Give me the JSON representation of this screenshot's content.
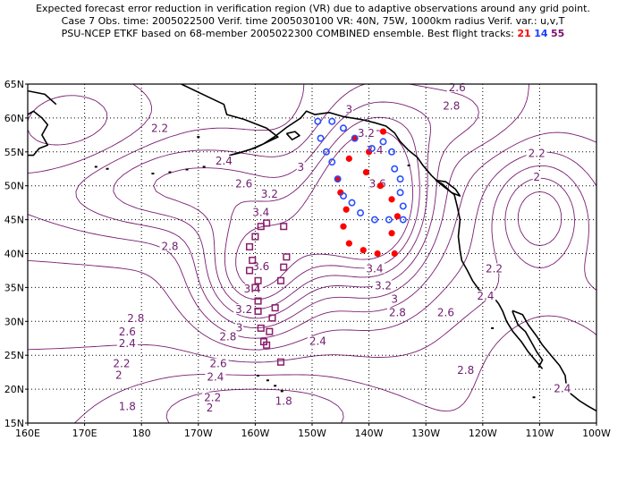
{
  "header": {
    "line1": "Expected forecast error reduction in verification region (VR) due to adaptive observations around any grid point.",
    "line2": "Case 7   Obs. time: 2005022500   Verif. time 2005030100   VR: 40N, 75W, 1000km radius   Verif. var.: u,v,T",
    "line3_prefix": "PSU-NCEP ETKF based on 68-member 2005022300 COMBINED ensemble.   Best flight tracks:",
    "track_red": "21",
    "track_blue": "14",
    "track_purple": "55"
  },
  "colors": {
    "contour": "#7a1e72",
    "red_track": "#ff0000",
    "blue_track": "#2a4fff",
    "purple_track": "#8a1e6a",
    "coast": "#000000",
    "grid": "#000000"
  },
  "axes": {
    "lat_labels": [
      "65N",
      "60N",
      "55N",
      "50N",
      "45N",
      "40N",
      "35N",
      "30N",
      "25N",
      "20N",
      "15N"
    ],
    "lon_labels": [
      "160E",
      "170E",
      "180",
      "170W",
      "160W",
      "150W",
      "140W",
      "130W",
      "120W",
      "110W",
      "100W"
    ]
  },
  "contour_labels": [
    {
      "text": "2.2",
      "lon": -176.8,
      "lat": 58.2
    },
    {
      "text": "2.4",
      "lon": -165.5,
      "lat": 53.4
    },
    {
      "text": "2.6",
      "lon": -162.0,
      "lat": 50.0
    },
    {
      "text": "2.8",
      "lon": -175.0,
      "lat": 40.8
    },
    {
      "text": "3",
      "lon": -152.0,
      "lat": 52.5
    },
    {
      "text": "3.2",
      "lon": -157.5,
      "lat": 48.5
    },
    {
      "text": "3.4",
      "lon": -159.0,
      "lat": 45.8
    },
    {
      "text": "3.6",
      "lon": -159.0,
      "lat": 37.8
    },
    {
      "text": "3.4",
      "lon": -160.5,
      "lat": 34.5
    },
    {
      "text": "3.2",
      "lon": -162.0,
      "lat": 31.5
    },
    {
      "text": "3",
      "lon": -162.8,
      "lat": 28.8
    },
    {
      "text": "2.8",
      "lon": -164.8,
      "lat": 27.5
    },
    {
      "text": "2.6",
      "lon": -166.5,
      "lat": 23.5
    },
    {
      "text": "2.4",
      "lon": -167.0,
      "lat": 21.5
    },
    {
      "text": "2.2",
      "lon": -167.5,
      "lat": 18.5
    },
    {
      "text": "2",
      "lon": -168.0,
      "lat": 17.0
    },
    {
      "text": "1.8",
      "lon": -155.0,
      "lat": 18.0
    },
    {
      "text": "2.8",
      "lon": -181.0,
      "lat": 30.2
    },
    {
      "text": "2.6",
      "lon": -182.5,
      "lat": 28.2
    },
    {
      "text": "2.4",
      "lon": -182.5,
      "lat": 26.5
    },
    {
      "text": "2.2",
      "lon": -183.5,
      "lat": 23.5
    },
    {
      "text": "2",
      "lon": -184.0,
      "lat": 21.8
    },
    {
      "text": "1.8",
      "lon": -182.5,
      "lat": 17.2
    },
    {
      "text": "2.4",
      "lon": -149.0,
      "lat": 26.8
    },
    {
      "text": "3.2",
      "lon": -140.5,
      "lat": 57.5
    },
    {
      "text": "3.4",
      "lon": -139.0,
      "lat": 55.0
    },
    {
      "text": "3.6",
      "lon": -138.5,
      "lat": 50.0
    },
    {
      "text": "3",
      "lon": -143.5,
      "lat": 61.0
    },
    {
      "text": "3.4",
      "lon": -139.0,
      "lat": 37.5
    },
    {
      "text": "3.2",
      "lon": -137.5,
      "lat": 35.0
    },
    {
      "text": "3",
      "lon": -135.5,
      "lat": 33.0
    },
    {
      "text": "2.8",
      "lon": -135.0,
      "lat": 31.0
    },
    {
      "text": "2.6",
      "lon": -126.5,
      "lat": 31.0
    },
    {
      "text": "2.8",
      "lon": -125.5,
      "lat": 61.5
    },
    {
      "text": "2.6",
      "lon": -124.5,
      "lat": 64.2
    },
    {
      "text": "2.8",
      "lon": -123.0,
      "lat": 22.5
    },
    {
      "text": "2.4",
      "lon": -119.5,
      "lat": 33.5
    },
    {
      "text": "2.2",
      "lon": -118.0,
      "lat": 37.5
    },
    {
      "text": "2.2",
      "lon": -110.5,
      "lat": 54.5
    },
    {
      "text": "2",
      "lon": -110.5,
      "lat": 51.0
    },
    {
      "text": "2.4",
      "lon": -106.0,
      "lat": 19.8
    }
  ],
  "red_track": [
    [
      -142.5,
      57.0
    ],
    [
      -137.5,
      58.0
    ],
    [
      -140.0,
      55.0
    ],
    [
      -143.5,
      54.0
    ],
    [
      -140.5,
      52.0
    ],
    [
      -138.0,
      50.0
    ],
    [
      -136.0,
      48.0
    ],
    [
      -135.0,
      45.5
    ],
    [
      -136.0,
      43.0
    ],
    [
      -135.5,
      40.0
    ],
    [
      -138.5,
      40.0
    ],
    [
      -141.0,
      40.5
    ],
    [
      -143.5,
      41.5
    ],
    [
      -144.5,
      44.0
    ],
    [
      -144.0,
      46.5
    ],
    [
      -145.0,
      49.0
    ],
    [
      -145.5,
      51.0
    ]
  ],
  "blue_track": [
    [
      -149.0,
      59.5
    ],
    [
      -146.5,
      59.5
    ],
    [
      -144.5,
      58.5
    ],
    [
      -148.5,
      57.0
    ],
    [
      -142.5,
      57.0
    ],
    [
      -139.5,
      55.5
    ],
    [
      -137.5,
      56.5
    ],
    [
      -136.0,
      55.0
    ],
    [
      -135.5,
      52.5
    ],
    [
      -134.5,
      51.0
    ],
    [
      -134.5,
      49.0
    ],
    [
      -134.0,
      47.0
    ],
    [
      -134.0,
      45.0
    ],
    [
      -136.5,
      45.0
    ],
    [
      -139.0,
      45.0
    ],
    [
      -141.5,
      46.0
    ],
    [
      -143.0,
      47.5
    ],
    [
      -144.5,
      48.5
    ],
    [
      -145.5,
      51.0
    ],
    [
      -146.5,
      53.5
    ],
    [
      -147.5,
      55.0
    ]
  ],
  "purple_track": [
    [
      -158.0,
      44.5
    ],
    [
      -159.0,
      44.0
    ],
    [
      -160.0,
      42.5
    ],
    [
      -161.0,
      41.0
    ],
    [
      -160.5,
      39.0
    ],
    [
      -161.0,
      37.5
    ],
    [
      -159.5,
      36.0
    ],
    [
      -160.0,
      35.0
    ],
    [
      -159.5,
      33.0
    ],
    [
      -159.5,
      31.5
    ],
    [
      -159.0,
      29.0
    ],
    [
      -157.5,
      28.5
    ],
    [
      -158.5,
      27.0
    ],
    [
      -158.0,
      26.5
    ],
    [
      -155.5,
      24.0
    ],
    [
      -157.0,
      30.5
    ],
    [
      -156.5,
      32.0
    ],
    [
      -155.5,
      36.0
    ],
    [
      -155.0,
      38.0
    ],
    [
      -154.5,
      39.5
    ],
    [
      -155.0,
      44.0
    ]
  ]
}
